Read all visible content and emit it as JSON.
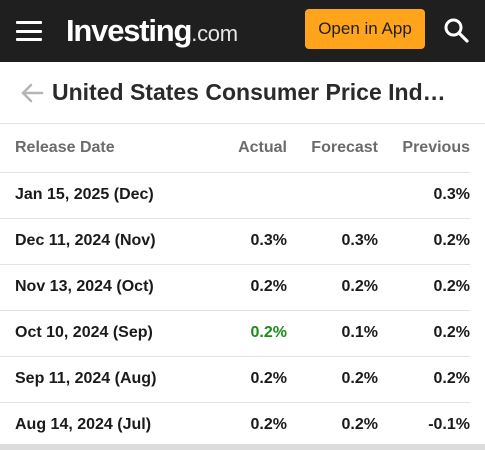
{
  "topbar": {
    "logo_main": "Investing",
    "logo_suffix": ".com",
    "open_app_label": "Open in App"
  },
  "header": {
    "title": "United States Consumer Price Ind…"
  },
  "table": {
    "headers": {
      "release_date": "Release Date",
      "actual": "Actual",
      "forecast": "Forecast",
      "previous": "Previous"
    },
    "rows": [
      {
        "date": "Jan 15, 2025 (Dec)",
        "actual": "",
        "forecast": "",
        "previous": "0.3%"
      },
      {
        "date": "Dec 11, 2024 (Nov)",
        "actual": "0.3%",
        "forecast": "0.3%",
        "previous": "0.2%"
      },
      {
        "date": "Nov 13, 2024 (Oct)",
        "actual": "0.2%",
        "forecast": "0.2%",
        "previous": "0.2%"
      },
      {
        "date": "Oct 10, 2024 (Sep)",
        "actual": "0.2%",
        "forecast": "0.1%",
        "previous": "0.2%"
      },
      {
        "date": "Sep 11, 2024 (Aug)",
        "actual": "0.2%",
        "forecast": "0.2%",
        "previous": "0.2%"
      },
      {
        "date": "Aug 14, 2024 (Jul)",
        "actual": "0.2%",
        "forecast": "0.2%",
        "previous": "-0.1%"
      }
    ]
  },
  "colors": {
    "topbar_bg": "#1f1f1f",
    "accent_orange": "#ffa41b",
    "actual_beat_green": "#1c8b1c"
  },
  "icons": [
    "hamburger-menu-icon",
    "search-icon",
    "back-arrow-icon"
  ]
}
